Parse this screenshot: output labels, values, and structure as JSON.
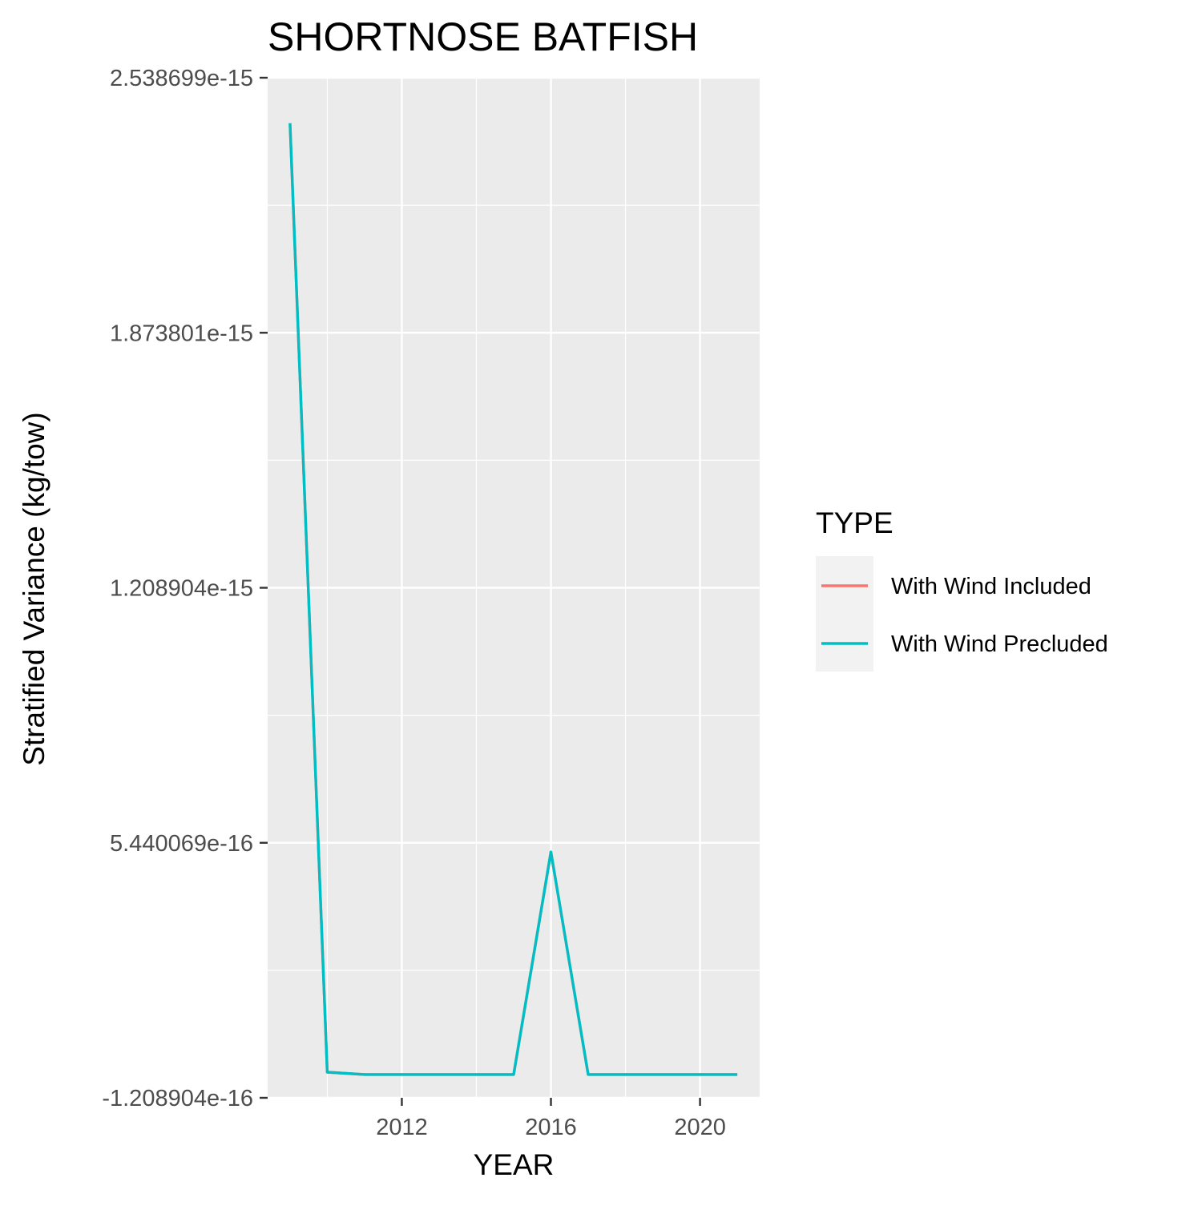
{
  "chart_data": {
    "type": "line",
    "title": "SHORTNOSE BATFISH",
    "xlabel": "YEAR",
    "ylabel": "Stratified Variance (kg/tow)",
    "x_ticks": [
      2012,
      2016,
      2020
    ],
    "x_tick_labels": [
      "2012",
      "2016",
      "2020"
    ],
    "xlim": [
      2008.4,
      2021.6
    ],
    "y_ticks": [
      -1.208904e-16,
      5.440069e-16,
      1.208904e-15,
      1.873801e-15,
      2.538699e-15
    ],
    "y_tick_labels": [
      "-1.208904e-16",
      "5.440069e-16",
      "1.208904e-15",
      "1.873801e-15",
      "2.538699e-15"
    ],
    "ylim": [
      -1.208904e-16,
      2.538699e-15
    ],
    "grid": true,
    "x": [
      2009,
      2010,
      2011,
      2012,
      2013,
      2014,
      2015,
      2016,
      2017,
      2018,
      2019,
      2020,
      2021
    ],
    "series": [
      {
        "name": "With Wind Included",
        "color": "#F8766D",
        "values": [
          2.42e-15,
          -5.4e-17,
          -6e-17,
          -6e-17,
          -6e-17,
          -6e-17,
          -6e-17,
          5.2e-16,
          -6e-17,
          -6e-17,
          -6e-17,
          -6e-17,
          -6e-17
        ]
      },
      {
        "name": "With Wind Precluded",
        "color": "#00BFC4",
        "values": [
          2.42e-15,
          -5.4e-17,
          -6e-17,
          -6e-17,
          -6e-17,
          -6e-17,
          -6e-17,
          5.2e-16,
          -6e-17,
          -6e-17,
          -6e-17,
          -6e-17,
          -6e-17
        ]
      }
    ],
    "legend": {
      "title": "TYPE",
      "position": "right"
    },
    "colors": {
      "panel_background": "#EBEBEB",
      "grid": "#FFFFFF",
      "legend_key_background": "#F2F2F2",
      "tick_mark": "#333333"
    }
  }
}
